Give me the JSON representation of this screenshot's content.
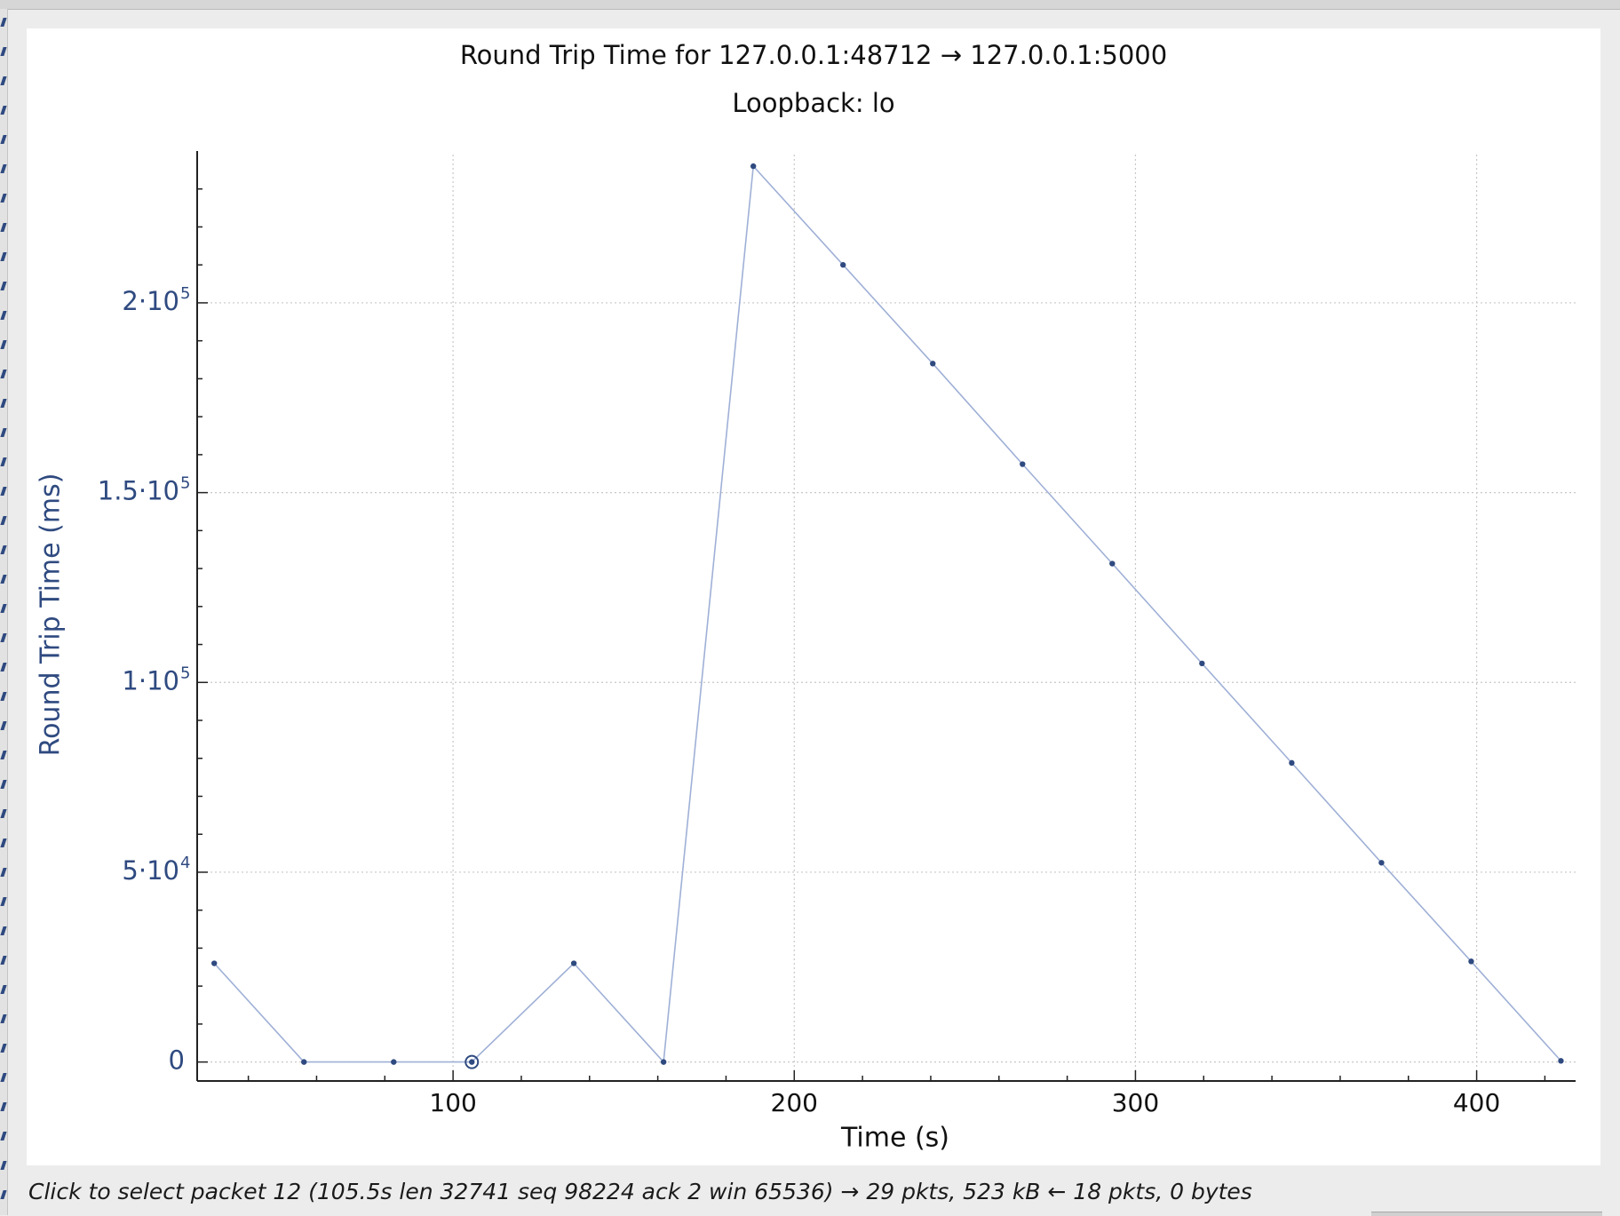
{
  "colors": {
    "series": "#2f4a80",
    "line": "#9fb0d6",
    "axis_label": "#2f4a80",
    "grid": "#c8c8c8"
  },
  "status_bar": {
    "text": "Click to select packet 12 (105.5s len 32741 seq 98224 ack 2 win 65536) → 29 pkts, 523 kB ← 18 pkts, 0 bytes"
  },
  "chart_data": {
    "type": "line",
    "title": "Round Trip Time for 127.0.0.1:48712 → 127.0.0.1:5000",
    "subtitle": "Loopback: lo",
    "xlabel": "Time (s)",
    "ylabel": "Round Trip Time (ms)",
    "xlim": [
      25,
      429
    ],
    "ylim": [
      -5000,
      240000
    ],
    "x_ticks": [
      {
        "value": 100,
        "label": "100"
      },
      {
        "value": 200,
        "label": "200"
      },
      {
        "value": 300,
        "label": "300"
      },
      {
        "value": 400,
        "label": "400"
      }
    ],
    "y_ticks": [
      {
        "value": 0,
        "mantissa": "0",
        "exponent": ""
      },
      {
        "value": 50000,
        "mantissa": "5·10",
        "exponent": "4"
      },
      {
        "value": 100000,
        "mantissa": "1·10",
        "exponent": "5"
      },
      {
        "value": 150000,
        "mantissa": "1.5·10",
        "exponent": "5"
      },
      {
        "value": 200000,
        "mantissa": "2·10",
        "exponent": "5"
      }
    ],
    "grid": true,
    "series": [
      {
        "x": [
          30,
          56.3,
          82.6,
          105.5,
          135.4,
          161.7,
          188.0,
          214.3,
          240.6,
          266.9,
          293.2,
          319.5,
          345.8,
          372.1,
          398.4,
          424.7
        ],
        "values": [
          26000,
          0,
          0,
          0,
          26000,
          0,
          236000,
          210000,
          184000,
          157500,
          131300,
          105000,
          78800,
          52500,
          26500,
          300
        ]
      }
    ],
    "selected_point": {
      "x": 105.5,
      "y": 0
    }
  }
}
